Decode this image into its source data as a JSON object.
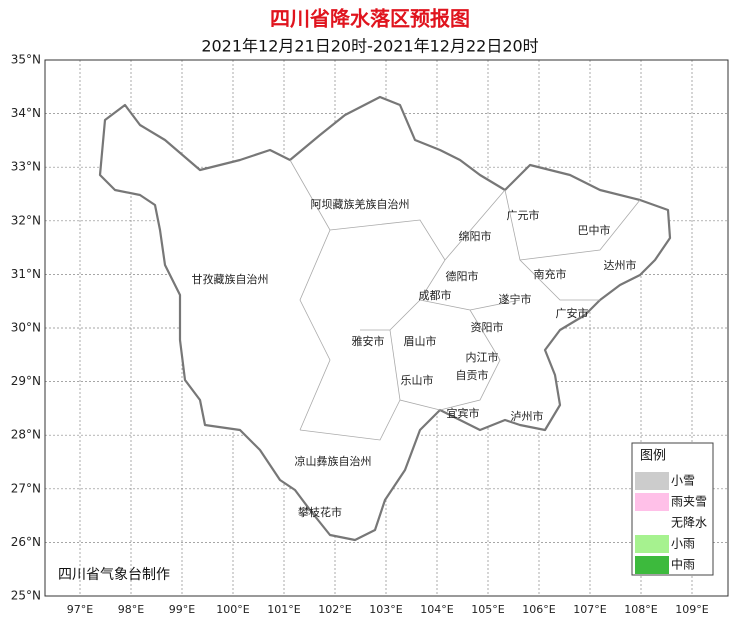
{
  "header": {
    "title": "四川省降水落区预报图",
    "subtitle": "2021年12月21日20时-2021年12月22日20时"
  },
  "map": {
    "lat_ticks": [
      {
        "value": 35,
        "label": "35°N"
      },
      {
        "value": 34,
        "label": "34°N"
      },
      {
        "value": 33,
        "label": "33°N"
      },
      {
        "value": 32,
        "label": "32°N"
      },
      {
        "value": 31,
        "label": "31°N"
      },
      {
        "value": 30,
        "label": "30°N"
      },
      {
        "value": 29,
        "label": "29°N"
      },
      {
        "value": 28,
        "label": "28°N"
      },
      {
        "value": 27,
        "label": "27°N"
      },
      {
        "value": 26,
        "label": "26°N"
      },
      {
        "value": 25,
        "label": "25°N"
      }
    ],
    "lon_ticks": [
      {
        "value": 97,
        "label": "97°E"
      },
      {
        "value": 98,
        "label": "98°E"
      },
      {
        "value": 99,
        "label": "99°E"
      },
      {
        "value": 100,
        "label": "100°E"
      },
      {
        "value": 101,
        "label": "101°E"
      },
      {
        "value": 102,
        "label": "102°E"
      },
      {
        "value": 103,
        "label": "103°E"
      },
      {
        "value": 104,
        "label": "104°E"
      },
      {
        "value": 105,
        "label": "105°E"
      },
      {
        "value": 106,
        "label": "106°E"
      },
      {
        "value": 107,
        "label": "107°E"
      },
      {
        "value": 108,
        "label": "108°E"
      },
      {
        "value": 109,
        "label": "109°E"
      }
    ],
    "places": [
      "阿坝藏族羌族自治州",
      "甘孜藏族自治州",
      "广元市",
      "巴中市",
      "绵阳市",
      "达州市",
      "南充市",
      "德阳市",
      "成都市",
      "遂宁市",
      "广安市",
      "资阳市",
      "雅安市",
      "眉山市",
      "内江市",
      "自贡市",
      "乐山市",
      "宜宾市",
      "泸州市",
      "凉山彝族自治州",
      "攀枝花市"
    ]
  },
  "legend": {
    "title": "图例",
    "items": [
      {
        "label": "小雪",
        "color": "#cccccc"
      },
      {
        "label": "雨夹雪",
        "color": "#ffc0e8"
      },
      {
        "label": "无降水",
        "color": "#ffffff"
      },
      {
        "label": "小雨",
        "color": "#a6f28f"
      },
      {
        "label": "中雨",
        "color": "#3dba3d"
      }
    ]
  },
  "credit": "四川省气象台制作"
}
